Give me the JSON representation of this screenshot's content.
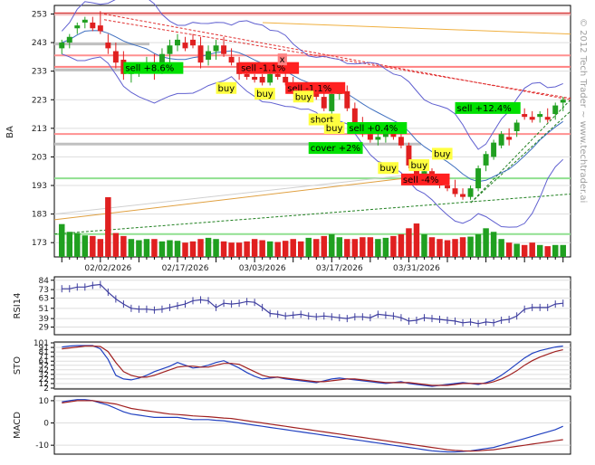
{
  "chart_data": {
    "type": "candlestick",
    "symbol": "BA",
    "watermark": "© 2012 Tech Trader ~ www.techtrader.ai",
    "price_axis": {
      "ticks": [
        "253",
        "243",
        "233",
        "223",
        "213",
        "203",
        "193",
        "183",
        "173"
      ],
      "ylim": [
        168,
        256
      ]
    },
    "date_labels": [
      "02/02/2026",
      "02/17/2026",
      "03/03/2026",
      "03/17/2026",
      "03/31/2026"
    ],
    "candles": [
      {
        "o": 241,
        "h": 244,
        "l": 239,
        "c": 243
      },
      {
        "o": 243,
        "h": 246,
        "l": 241,
        "c": 245
      },
      {
        "o": 248,
        "h": 250,
        "l": 246,
        "c": 249
      },
      {
        "o": 250,
        "h": 252,
        "l": 248,
        "c": 251
      },
      {
        "o": 250,
        "h": 252,
        "l": 247,
        "c": 248
      },
      {
        "o": 249,
        "h": 254,
        "l": 246,
        "c": 247
      },
      {
        "o": 243,
        "h": 246,
        "l": 239,
        "c": 241
      },
      {
        "o": 240,
        "h": 243,
        "l": 234,
        "c": 236
      },
      {
        "o": 237,
        "h": 240,
        "l": 230,
        "c": 232
      },
      {
        "o": 232,
        "h": 236,
        "l": 229,
        "c": 233
      },
      {
        "o": 233,
        "h": 236,
        "l": 231,
        "c": 235
      },
      {
        "o": 235,
        "h": 238,
        "l": 233,
        "c": 236
      },
      {
        "o": 235,
        "h": 239,
        "l": 230,
        "c": 233
      },
      {
        "o": 234,
        "h": 241,
        "l": 232,
        "c": 239
      },
      {
        "o": 239,
        "h": 244,
        "l": 236,
        "c": 242
      },
      {
        "o": 242,
        "h": 246,
        "l": 240,
        "c": 244
      },
      {
        "o": 243,
        "h": 245,
        "l": 240,
        "c": 241
      },
      {
        "o": 244,
        "h": 246,
        "l": 241,
        "c": 242
      },
      {
        "o": 242,
        "h": 245,
        "l": 234,
        "c": 236
      },
      {
        "o": 237,
        "h": 242,
        "l": 235,
        "c": 240
      },
      {
        "o": 240,
        "h": 244,
        "l": 237,
        "c": 242
      },
      {
        "o": 242,
        "h": 245,
        "l": 238,
        "c": 239
      },
      {
        "o": 238,
        "h": 241,
        "l": 235,
        "c": 236
      },
      {
        "o": 236,
        "h": 238,
        "l": 230,
        "c": 232
      },
      {
        "o": 232,
        "h": 233,
        "l": 230,
        "c": 231
      },
      {
        "o": 231,
        "h": 232,
        "l": 229,
        "c": 230
      },
      {
        "o": 231,
        "h": 232,
        "l": 228,
        "c": 229
      },
      {
        "o": 229,
        "h": 233,
        "l": 228,
        "c": 232
      },
      {
        "o": 232,
        "h": 234,
        "l": 230,
        "c": 231
      },
      {
        "o": 231,
        "h": 233,
        "l": 228,
        "c": 229
      },
      {
        "o": 229,
        "h": 231,
        "l": 225,
        "c": 226
      },
      {
        "o": 225,
        "h": 228,
        "l": 223,
        "c": 224
      },
      {
        "o": 223,
        "h": 227,
        "l": 222,
        "c": 226
      },
      {
        "o": 226,
        "h": 229,
        "l": 223,
        "c": 224
      },
      {
        "o": 224,
        "h": 226,
        "l": 219,
        "c": 220
      },
      {
        "o": 219,
        "h": 226,
        "l": 218,
        "c": 225
      },
      {
        "o": 225,
        "h": 229,
        "l": 223,
        "c": 226
      },
      {
        "o": 226,
        "h": 228,
        "l": 219,
        "c": 220
      },
      {
        "o": 220,
        "h": 222,
        "l": 213,
        "c": 214
      },
      {
        "o": 214,
        "h": 217,
        "l": 210,
        "c": 211
      },
      {
        "o": 211,
        "h": 213,
        "l": 208,
        "c": 209
      },
      {
        "o": 209,
        "h": 212,
        "l": 207,
        "c": 210
      },
      {
        "o": 210,
        "h": 214,
        "l": 208,
        "c": 212
      },
      {
        "o": 212,
        "h": 214,
        "l": 209,
        "c": 210
      },
      {
        "o": 210,
        "h": 211,
        "l": 206,
        "c": 207
      },
      {
        "o": 207,
        "h": 208,
        "l": 199,
        "c": 200
      },
      {
        "o": 199,
        "h": 201,
        "l": 193,
        "c": 195
      },
      {
        "o": 195,
        "h": 199,
        "l": 194,
        "c": 198
      },
      {
        "o": 198,
        "h": 199,
        "l": 195,
        "c": 196
      },
      {
        "o": 196,
        "h": 197,
        "l": 192,
        "c": 193
      },
      {
        "o": 193,
        "h": 196,
        "l": 191,
        "c": 192
      },
      {
        "o": 192,
        "h": 195,
        "l": 189,
        "c": 190
      },
      {
        "o": 190,
        "h": 192,
        "l": 188,
        "c": 189
      },
      {
        "o": 189,
        "h": 193,
        "l": 188,
        "c": 192
      },
      {
        "o": 192,
        "h": 200,
        "l": 191,
        "c": 199
      },
      {
        "o": 200,
        "h": 205,
        "l": 198,
        "c": 204
      },
      {
        "o": 203,
        "h": 209,
        "l": 202,
        "c": 208
      },
      {
        "o": 207,
        "h": 212,
        "l": 206,
        "c": 211
      },
      {
        "o": 210,
        "h": 213,
        "l": 207,
        "c": 209
      },
      {
        "o": 212,
        "h": 216,
        "l": 210,
        "c": 215
      },
      {
        "o": 218,
        "h": 220,
        "l": 216,
        "c": 217
      },
      {
        "o": 217,
        "h": 219,
        "l": 215,
        "c": 216
      },
      {
        "o": 217,
        "h": 219,
        "l": 215,
        "c": 218
      },
      {
        "o": 217,
        "h": 220,
        "l": 215,
        "c": 216
      },
      {
        "o": 218,
        "h": 222,
        "l": 216,
        "c": 221
      },
      {
        "o": 222,
        "h": 224,
        "l": 219,
        "c": 223
      }
    ],
    "volume": [
      0.55,
      0.42,
      0.4,
      0.36,
      0.35,
      0.3,
      1.0,
      0.4,
      0.35,
      0.3,
      0.28,
      0.3,
      0.3,
      0.26,
      0.28,
      0.27,
      0.24,
      0.26,
      0.3,
      0.32,
      0.3,
      0.26,
      0.24,
      0.24,
      0.26,
      0.3,
      0.28,
      0.26,
      0.25,
      0.27,
      0.3,
      0.26,
      0.32,
      0.3,
      0.35,
      0.38,
      0.33,
      0.3,
      0.3,
      0.33,
      0.33,
      0.3,
      0.32,
      0.35,
      0.38,
      0.48,
      0.56,
      0.38,
      0.33,
      0.3,
      0.28,
      0.3,
      0.33,
      0.34,
      0.38,
      0.48,
      0.42,
      0.3,
      0.24,
      0.22,
      0.2,
      0.24,
      0.2,
      0.18,
      0.2,
      0.2
    ],
    "signals": [
      {
        "label": "sell +8.6%",
        "color": "#00e000",
        "i": 8,
        "p": 233
      },
      {
        "label": "sell -1.1%",
        "color": "#ff2020",
        "i": 23,
        "p": 233
      },
      {
        "label": "x",
        "color": "#ff8080",
        "i": 28,
        "p": 236
      },
      {
        "label": "buy",
        "color": "#ffff40",
        "i": 20,
        "p": 226
      },
      {
        "label": "buy",
        "color": "#ffff40",
        "i": 25,
        "p": 224
      },
      {
        "label": "sell -1.1%",
        "color": "#ff2020",
        "i": 29,
        "p": 226
      },
      {
        "label": "buy",
        "color": "#ffff40",
        "i": 30,
        "p": 223
      },
      {
        "label": "short",
        "color": "#ffff40",
        "i": 32,
        "p": 215
      },
      {
        "label": "buy",
        "color": "#ffff40",
        "i": 34,
        "p": 212
      },
      {
        "label": "sell +0.4%",
        "color": "#00e000",
        "i": 37,
        "p": 212
      },
      {
        "label": "cover +2%",
        "color": "#00e000",
        "i": 32,
        "p": 205
      },
      {
        "label": "buy",
        "color": "#ffff40",
        "i": 41,
        "p": 198
      },
      {
        "label": "buy",
        "color": "#ffff40",
        "i": 45,
        "p": 199
      },
      {
        "label": "sell -4%",
        "color": "#ff2020",
        "i": 44,
        "p": 194
      },
      {
        "label": "buy",
        "color": "#ffff40",
        "i": 48,
        "p": 203
      },
      {
        "label": "sell +12.4%",
        "color": "#00e000",
        "i": 51,
        "p": 219
      }
    ],
    "rsi": {
      "label": "RSI14",
      "ticks": [
        "84",
        "73",
        "63",
        "51",
        "39",
        "29"
      ],
      "ylim": [
        20,
        88
      ],
      "values": [
        74,
        74,
        76,
        76,
        78,
        79,
        70,
        62,
        56,
        51,
        50,
        50,
        49,
        50,
        52,
        54,
        56,
        60,
        61,
        60,
        52,
        57,
        56,
        57,
        59,
        58,
        52,
        45,
        44,
        42,
        43,
        44,
        42,
        41,
        42,
        41,
        40,
        39,
        41,
        41,
        40,
        44,
        43,
        42,
        40,
        36,
        37,
        40,
        39,
        38,
        37,
        36,
        34,
        35,
        33,
        35,
        34,
        37,
        38,
        42,
        50,
        52,
        52,
        52,
        56,
        57
      ]
    },
    "sto": {
      "label": "STO",
      "ticks": [
        "101",
        "91",
        "81",
        "71",
        "61",
        "52",
        "42",
        "32",
        "22",
        "12",
        "2"
      ],
      "ylim": [
        0,
        103
      ],
      "k": [
        92,
        94,
        95,
        95,
        95,
        88,
        65,
        30,
        22,
        20,
        24,
        30,
        38,
        44,
        50,
        58,
        52,
        46,
        48,
        52,
        58,
        62,
        54,
        46,
        36,
        28,
        22,
        24,
        26,
        22,
        20,
        18,
        16,
        14,
        18,
        22,
        24,
        22,
        20,
        18,
        16,
        14,
        12,
        14,
        16,
        12,
        10,
        8,
        6,
        8,
        10,
        12,
        14,
        12,
        10,
        14,
        20,
        30,
        42,
        55,
        68,
        78,
        84,
        88,
        92,
        94
      ],
      "d": [
        88,
        90,
        92,
        94,
        94,
        93,
        82,
        58,
        38,
        30,
        26,
        26,
        30,
        36,
        42,
        48,
        50,
        50,
        48,
        48,
        52,
        56,
        56,
        54,
        46,
        38,
        30,
        26,
        26,
        24,
        22,
        20,
        18,
        16,
        16,
        18,
        20,
        22,
        22,
        20,
        18,
        16,
        14,
        14,
        14,
        14,
        12,
        10,
        8,
        8,
        8,
        10,
        12,
        12,
        12,
        12,
        16,
        22,
        30,
        40,
        52,
        62,
        70,
        76,
        82,
        86
      ]
    },
    "macd": {
      "label": "MACD",
      "ticks": [
        "10",
        "0",
        "-10"
      ],
      "ylim": [
        -14,
        12
      ],
      "line": [
        9.5,
        10,
        10.5,
        10.5,
        10,
        9,
        8,
        6.5,
        5,
        4,
        3.5,
        3,
        2.5,
        2.5,
        2.5,
        2.5,
        2,
        1.5,
        1.5,
        1.5,
        1.2,
        1,
        0.5,
        0,
        -0.5,
        -1,
        -1.5,
        -2,
        -2.5,
        -3,
        -3.5,
        -4,
        -4.5,
        -5,
        -5.5,
        -6,
        -6.5,
        -7,
        -7.5,
        -8,
        -8.5,
        -9,
        -9.5,
        -10,
        -10.5,
        -11,
        -11.5,
        -12,
        -12.5,
        -12.8,
        -13,
        -13,
        -12.8,
        -12.5,
        -12,
        -11.5,
        -11,
        -10,
        -9,
        -8,
        -7,
        -6,
        -5,
        -4,
        -3,
        -1.5
      ],
      "signal": [
        9,
        9.5,
        10,
        10,
        10,
        9.5,
        9,
        8.5,
        7.5,
        6.5,
        6,
        5.5,
        5,
        4.5,
        4,
        3.8,
        3.5,
        3.2,
        3,
        2.8,
        2.5,
        2.2,
        2,
        1.5,
        1,
        0.5,
        0,
        -0.5,
        -1,
        -1.5,
        -2,
        -2.5,
        -3,
        -3.5,
        -4,
        -4.5,
        -5,
        -5.5,
        -6,
        -6.5,
        -7,
        -7.5,
        -8,
        -8.5,
        -9,
        -9.5,
        -10,
        -10.5,
        -11,
        -11.5,
        -12,
        -12.3,
        -12.5,
        -12.6,
        -12.5,
        -12.2,
        -12,
        -11.5,
        -11,
        -10.5,
        -10,
        -9.5,
        -9,
        -8.5,
        -8,
        -7.5
      ]
    }
  }
}
